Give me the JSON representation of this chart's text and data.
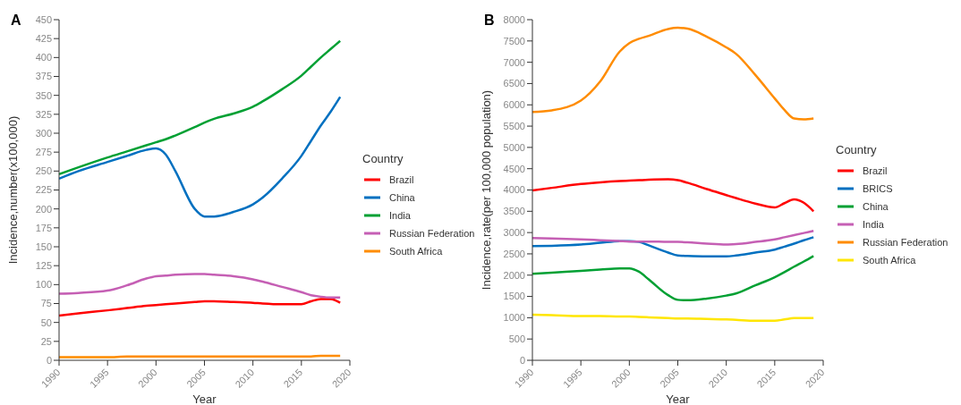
{
  "chart_data": [
    {
      "type": "line",
      "title": "A",
      "xlabel": "Year",
      "ylabel": "Incidence,number(x100,000)",
      "legend_title": "Country",
      "legend": "right",
      "grid": false,
      "x": [
        1990,
        1992,
        1995,
        1997,
        1999,
        2000,
        2001,
        2002,
        2004,
        2005,
        2006,
        2008,
        2010,
        2011,
        2013,
        2015,
        2016,
        2017,
        2018,
        2019
      ],
      "xlim": [
        1990,
        2020
      ],
      "xticks": [
        1990,
        1995,
        2000,
        2005,
        2010,
        2015,
        2020
      ],
      "ylim": [
        0,
        450
      ],
      "yticks": [
        0,
        25,
        50,
        75,
        100,
        125,
        150,
        175,
        200,
        225,
        250,
        275,
        300,
        325,
        350,
        375,
        400,
        425,
        450
      ],
      "series": [
        {
          "name": "Brazil",
          "color": "#ff0000",
          "values": [
            59,
            62,
            66,
            69,
            72,
            73,
            74,
            75,
            77,
            78,
            78,
            77,
            76,
            75,
            74,
            74,
            78,
            81,
            81,
            76
          ]
        },
        {
          "name": "China",
          "color": "#0070c0",
          "values": [
            240,
            250,
            262,
            270,
            278,
            280,
            272,
            250,
            200,
            190,
            190,
            196,
            206,
            215,
            240,
            270,
            290,
            310,
            328,
            348
          ]
        },
        {
          "name": "India",
          "color": "#00a033",
          "values": [
            246,
            255,
            268,
            276,
            284,
            288,
            292,
            297,
            308,
            314,
            319,
            326,
            335,
            342,
            358,
            376,
            388,
            400,
            411,
            422
          ]
        },
        {
          "name": "Russian Federation",
          "color": "#c55fb4",
          "values": [
            88,
            89,
            92,
            99,
            108,
            111,
            112,
            113,
            114,
            114,
            113,
            111,
            107,
            104,
            97,
            90,
            86,
            84,
            83,
            83
          ]
        },
        {
          "name": "South Africa",
          "color": "#ff8c00",
          "values": [
            4,
            4,
            4,
            5,
            5,
            5,
            5,
            5,
            5,
            5,
            5,
            5,
            5,
            5,
            5,
            5,
            5,
            6,
            6,
            6
          ]
        }
      ]
    },
    {
      "type": "line",
      "title": "B",
      "xlabel": "Year",
      "ylabel": "Incidence,rate(per 100,000 population)",
      "legend_title": "Country",
      "legend": "right",
      "grid": false,
      "x": [
        1990,
        1992,
        1995,
        1997,
        1999,
        2000,
        2001,
        2002,
        2004,
        2005,
        2006,
        2008,
        2010,
        2011,
        2013,
        2015,
        2016,
        2017,
        2018,
        2019
      ],
      "xlim": [
        1990,
        2020
      ],
      "xticks": [
        1990,
        1995,
        2000,
        2005,
        2010,
        2015,
        2020
      ],
      "ylim": [
        0,
        8000
      ],
      "yticks": [
        0,
        500,
        1000,
        1500,
        2000,
        2500,
        3000,
        3500,
        4000,
        4500,
        5000,
        5500,
        6000,
        6500,
        7000,
        7500,
        8000
      ],
      "series": [
        {
          "name": "Brazil",
          "color": "#ff0000",
          "values": [
            3990,
            4050,
            4140,
            4180,
            4210,
            4220,
            4230,
            4240,
            4250,
            4230,
            4170,
            4020,
            3880,
            3810,
            3680,
            3590,
            3690,
            3780,
            3700,
            3500
          ]
        },
        {
          "name": "BRICS",
          "color": "#0070c0",
          "values": [
            2680,
            2690,
            2720,
            2760,
            2800,
            2800,
            2780,
            2700,
            2530,
            2460,
            2450,
            2440,
            2440,
            2460,
            2530,
            2600,
            2670,
            2740,
            2820,
            2890
          ]
        },
        {
          "name": "China",
          "color": "#00a033",
          "values": [
            2030,
            2060,
            2100,
            2130,
            2160,
            2160,
            2080,
            1900,
            1530,
            1420,
            1410,
            1450,
            1520,
            1570,
            1760,
            1950,
            2070,
            2200,
            2320,
            2450
          ]
        },
        {
          "name": "India",
          "color": "#c55fb4",
          "values": [
            2870,
            2860,
            2840,
            2820,
            2800,
            2790,
            2790,
            2790,
            2780,
            2780,
            2770,
            2740,
            2720,
            2730,
            2780,
            2840,
            2890,
            2940,
            2990,
            3040
          ]
        },
        {
          "name": "Russian Federation",
          "color": "#ff8c00",
          "values": [
            5830,
            5870,
            6100,
            6550,
            7250,
            7450,
            7550,
            7620,
            7780,
            7810,
            7790,
            7600,
            7350,
            7200,
            6700,
            6150,
            5880,
            5680,
            5660,
            5680
          ]
        },
        {
          "name": "South Africa",
          "color": "#ffe600",
          "values": [
            1070,
            1060,
            1040,
            1040,
            1030,
            1030,
            1020,
            1010,
            990,
            980,
            980,
            970,
            960,
            950,
            930,
            930,
            960,
            990,
            990,
            990
          ]
        }
      ]
    }
  ]
}
